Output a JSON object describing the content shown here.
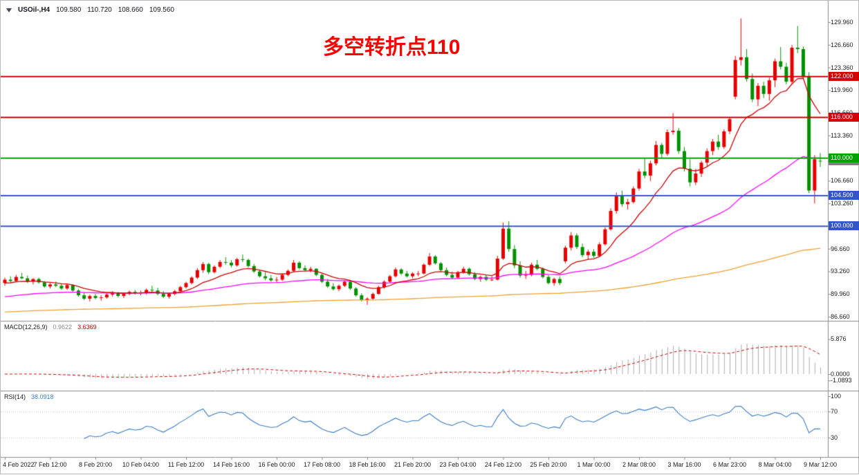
{
  "header": {
    "symbol_period": "USOil-,H4",
    "open": "109.580",
    "high": "110.720",
    "low": "108.660",
    "close": "109.560"
  },
  "annotation": {
    "text": "多空转折点110",
    "color": "#FF0000"
  },
  "chart_data": {
    "type": "candlestick",
    "symbol": "USOil-",
    "timeframe": "H4",
    "up_color": "#E60000",
    "down_color": "#009000",
    "ylim": [
      86.15,
      132.3
    ],
    "y_ticks": [
      "129.960",
      "126.660",
      "123.360",
      "119.960",
      "116.660",
      "113.360",
      "110.060",
      "106.660",
      "103.260",
      "99.960",
      "96.660",
      "93.260",
      "89.960",
      "86.660"
    ],
    "x_labels": [
      "4 Feb 2022",
      "7 Feb 12:00",
      "8 Feb 20:00",
      "10 Feb 04:00",
      "11 Feb 12:00",
      "14 Feb 16:00",
      "16 Feb 00:00",
      "17 Feb 08:00",
      "18 Feb 16:00",
      "21 Feb 20:00",
      "23 Feb 04:00",
      "24 Feb 12:00",
      "25 Feb 20:00",
      "1 Mar 00:00",
      "2 Mar 08:00",
      "3 Mar 16:00",
      "6 Mar 23:00",
      "8 Mar 04:00",
      "9 Mar 12:00"
    ],
    "horizontal_levels": [
      {
        "label": "109.560",
        "price": 109.56,
        "color": "#808080",
        "current": true
      },
      {
        "label": "122.000",
        "price": 122.0,
        "color": "#D40000"
      },
      {
        "label": "116.000",
        "price": 116.0,
        "color": "#D40000"
      },
      {
        "label": "110.000",
        "price": 110.0,
        "color": "#00A100"
      },
      {
        "label": "104.500",
        "price": 104.5,
        "color": "#3355CC"
      },
      {
        "label": "100.000",
        "price": 100.0,
        "color": "#3355CC"
      }
    ],
    "moving_averages": [
      {
        "name": "slow-ma",
        "period": 250,
        "seed": 87.3,
        "color": "#F0A030"
      },
      {
        "name": "mid-ma",
        "period": 55,
        "seed": 89.5,
        "color": "#FF00FF"
      },
      {
        "name": "fast-ma",
        "period": 12,
        "seed": 91.5,
        "color": "#CC0000"
      }
    ],
    "macd": {
      "title": "MACD(12,26,9)",
      "main_value": "0.9622",
      "signal_value": "3.6369",
      "fast": 12,
      "slow": 26,
      "signal": 9,
      "ticks": [
        "5.876",
        "0.0000",
        "-1.0893"
      ],
      "histogram_color": "#ABABAB",
      "signal_color": "#C00000"
    },
    "rsi": {
      "title": "RSI(14)",
      "value": "38.0918",
      "period": 14,
      "ticks": [
        "100",
        "70",
        "30"
      ],
      "levels": [
        70,
        30
      ],
      "color": "#3A7AC0"
    },
    "ohlc": [
      [
        91.6,
        92.4,
        91.2,
        92.1
      ],
      [
        92.1,
        92.6,
        91.7,
        91.9
      ],
      [
        91.9,
        92.8,
        91.8,
        92.5
      ],
      [
        92.5,
        93.1,
        92.2,
        92.3
      ],
      [
        92.3,
        92.7,
        91.6,
        91.8
      ],
      [
        91.8,
        92.3,
        91.4,
        92.2
      ],
      [
        92.2,
        92.4,
        91.5,
        91.7
      ],
      [
        91.7,
        91.9,
        90.9,
        91.1
      ],
      [
        91.1,
        91.6,
        90.8,
        91.4
      ],
      [
        91.4,
        91.8,
        91.0,
        91.2
      ],
      [
        91.2,
        91.5,
        90.6,
        90.8
      ],
      [
        90.8,
        91.4,
        90.6,
        91.3
      ],
      [
        91.3,
        91.4,
        90.3,
        90.5
      ],
      [
        90.5,
        90.7,
        89.6,
        89.8
      ],
      [
        89.8,
        90.2,
        89.1,
        89.3
      ],
      [
        89.3,
        89.9,
        88.9,
        89.7
      ],
      [
        89.7,
        90.0,
        89.2,
        89.4
      ],
      [
        89.4,
        89.8,
        89.0,
        89.5
      ],
      [
        89.5,
        90.1,
        89.3,
        89.9
      ],
      [
        89.9,
        90.4,
        89.6,
        90.1
      ],
      [
        90.1,
        90.3,
        89.5,
        89.7
      ],
      [
        89.7,
        90.2,
        89.4,
        90.0
      ],
      [
        90.0,
        90.5,
        89.8,
        90.3
      ],
      [
        90.3,
        90.6,
        89.9,
        90.1
      ],
      [
        90.1,
        90.5,
        89.8,
        90.2
      ],
      [
        90.2,
        90.8,
        89.9,
        90.6
      ],
      [
        90.6,
        91.2,
        90.3,
        90.5
      ],
      [
        90.5,
        90.9,
        89.8,
        90.0
      ],
      [
        90.0,
        90.4,
        89.4,
        89.6
      ],
      [
        89.6,
        90.2,
        89.3,
        90.0
      ],
      [
        90.0,
        90.6,
        89.8,
        90.4
      ],
      [
        90.4,
        91.2,
        90.2,
        91.0
      ],
      [
        91.0,
        91.8,
        90.8,
        91.6
      ],
      [
        91.6,
        92.6,
        91.4,
        92.4
      ],
      [
        92.4,
        93.8,
        92.2,
        93.5
      ],
      [
        93.5,
        94.7,
        93.1,
        94.4
      ],
      [
        94.4,
        94.6,
        92.9,
        93.2
      ],
      [
        93.2,
        94.2,
        93.0,
        94.0
      ],
      [
        94.0,
        95.0,
        93.8,
        94.7
      ],
      [
        94.7,
        95.4,
        94.3,
        94.6
      ],
      [
        94.6,
        95.0,
        93.9,
        94.2
      ],
      [
        94.2,
        95.3,
        94.0,
        95.1
      ],
      [
        95.1,
        95.8,
        94.7,
        95.0
      ],
      [
        95.0,
        95.2,
        93.9,
        94.1
      ],
      [
        94.1,
        94.4,
        93.1,
        93.3
      ],
      [
        93.3,
        93.6,
        92.4,
        92.6
      ],
      [
        92.6,
        93.2,
        92.0,
        92.3
      ],
      [
        92.3,
        92.8,
        91.8,
        92.0
      ],
      [
        92.0,
        92.5,
        91.7,
        92.1
      ],
      [
        92.1,
        93.0,
        91.9,
        92.8
      ],
      [
        92.8,
        93.6,
        92.6,
        93.4
      ],
      [
        93.4,
        95.0,
        93.2,
        94.6
      ],
      [
        94.6,
        94.8,
        93.6,
        93.8
      ],
      [
        93.8,
        94.2,
        93.3,
        93.5
      ],
      [
        93.5,
        94.0,
        93.2,
        93.7
      ],
      [
        93.7,
        93.8,
        92.6,
        92.8
      ],
      [
        92.8,
        93.0,
        91.6,
        91.8
      ],
      [
        91.8,
        92.2,
        90.9,
        91.1
      ],
      [
        91.1,
        91.6,
        90.5,
        90.7
      ],
      [
        90.7,
        91.4,
        90.4,
        91.2
      ],
      [
        91.2,
        92.0,
        91.0,
        91.8
      ],
      [
        91.8,
        91.9,
        90.6,
        90.8
      ],
      [
        90.8,
        91.0,
        89.6,
        89.8
      ],
      [
        89.8,
        90.1,
        88.9,
        89.1
      ],
      [
        89.1,
        89.5,
        88.4,
        89.3
      ],
      [
        89.3,
        90.2,
        89.1,
        90.0
      ],
      [
        90.0,
        91.2,
        89.9,
        91.0
      ],
      [
        91.0,
        92.0,
        90.8,
        91.8
      ],
      [
        91.8,
        92.8,
        91.6,
        92.6
      ],
      [
        92.6,
        93.9,
        92.4,
        93.6
      ],
      [
        93.6,
        93.8,
        92.8,
        93.0
      ],
      [
        93.0,
        93.4,
        92.4,
        92.6
      ],
      [
        92.6,
        93.2,
        92.3,
        93.0
      ],
      [
        93.0,
        93.4,
        92.6,
        93.0
      ],
      [
        93.0,
        94.5,
        92.9,
        94.3
      ],
      [
        94.3,
        96.0,
        94.1,
        95.5
      ],
      [
        95.5,
        95.7,
        94.3,
        94.5
      ],
      [
        94.5,
        94.7,
        93.3,
        93.5
      ],
      [
        93.5,
        93.9,
        92.6,
        92.8
      ],
      [
        92.8,
        93.3,
        92.2,
        92.4
      ],
      [
        92.4,
        93.4,
        92.2,
        93.2
      ],
      [
        93.2,
        94.0,
        93.0,
        93.7
      ],
      [
        93.7,
        93.9,
        92.7,
        92.9
      ],
      [
        92.9,
        93.2,
        92.0,
        92.2
      ],
      [
        92.2,
        92.7,
        91.8,
        92.5
      ],
      [
        92.5,
        92.8,
        91.9,
        92.1
      ],
      [
        92.1,
        92.6,
        91.9,
        92.1
      ],
      [
        92.1,
        95.6,
        92.0,
        95.2
      ],
      [
        95.2,
        100.5,
        95.0,
        99.6
      ],
      [
        99.6,
        100.7,
        96.2,
        96.6
      ],
      [
        96.6,
        97.2,
        93.8,
        94.2
      ],
      [
        94.2,
        94.8,
        92.4,
        92.7
      ],
      [
        92.7,
        93.4,
        92.2,
        92.8
      ],
      [
        92.8,
        94.6,
        92.6,
        94.3
      ],
      [
        94.3,
        95.0,
        93.5,
        93.7
      ],
      [
        93.7,
        93.9,
        92.3,
        92.5
      ],
      [
        92.5,
        92.8,
        91.4,
        91.6
      ],
      [
        91.6,
        92.4,
        91.2,
        92.2
      ],
      [
        92.2,
        92.6,
        91.3,
        91.6
      ],
      [
        94.8,
        97.1,
        94.5,
        96.8
      ],
      [
        96.8,
        99.1,
        96.4,
        98.6
      ],
      [
        98.6,
        98.9,
        96.6,
        96.9
      ],
      [
        96.9,
        97.4,
        95.4,
        95.7
      ],
      [
        95.7,
        96.5,
        95.0,
        96.2
      ],
      [
        96.2,
        96.6,
        95.3,
        95.6
      ],
      [
        95.6,
        97.6,
        95.4,
        97.3
      ],
      [
        97.3,
        99.8,
        97.1,
        99.5
      ],
      [
        99.5,
        102.6,
        99.3,
        102.2
      ],
      [
        102.2,
        104.9,
        101.8,
        104.5
      ],
      [
        104.5,
        105.2,
        102.8,
        103.2
      ],
      [
        103.2,
        104.0,
        102.4,
        103.5
      ],
      [
        103.5,
        105.8,
        103.3,
        105.5
      ],
      [
        105.5,
        108.4,
        105.2,
        108.0
      ],
      [
        108.0,
        110.0,
        107.0,
        107.4
      ],
      [
        107.4,
        109.6,
        106.6,
        109.2
      ],
      [
        109.2,
        112.5,
        108.9,
        111.9
      ],
      [
        111.9,
        112.2,
        110.0,
        110.6
      ],
      [
        110.6,
        114.2,
        110.3,
        113.8
      ],
      [
        113.8,
        116.6,
        113.4,
        114.0
      ],
      [
        114.0,
        114.4,
        110.6,
        111.0
      ],
      [
        111.0,
        111.6,
        108.0,
        108.4
      ],
      [
        108.4,
        109.8,
        105.8,
        106.4
      ],
      [
        106.4,
        108.4,
        106.0,
        107.7
      ],
      [
        107.7,
        109.6,
        107.2,
        109.3
      ],
      [
        109.3,
        111.4,
        108.8,
        111.0
      ],
      [
        111.0,
        112.8,
        110.4,
        112.4
      ],
      [
        112.4,
        113.4,
        111.2,
        111.6
      ],
      [
        111.6,
        114.2,
        111.3,
        113.9
      ],
      [
        113.9,
        116.0,
        113.5,
        115.7
      ],
      [
        119.0,
        125.0,
        118.6,
        124.4
      ],
      [
        124.4,
        130.5,
        123.6,
        124.8
      ],
      [
        124.8,
        126.0,
        121.2,
        121.6
      ],
      [
        121.6,
        122.4,
        118.2,
        118.6
      ],
      [
        118.6,
        121.0,
        117.6,
        120.6
      ],
      [
        120.6,
        121.2,
        118.8,
        119.4
      ],
      [
        119.4,
        121.8,
        118.4,
        121.4
      ],
      [
        121.4,
        124.6,
        120.4,
        124.2
      ],
      [
        124.2,
        126.3,
        123.0,
        123.4
      ],
      [
        123.4,
        124.0,
        120.8,
        121.2
      ],
      [
        121.2,
        126.6,
        120.9,
        126.2
      ],
      [
        126.2,
        129.4,
        125.4,
        126.0
      ],
      [
        126.0,
        126.4,
        121.6,
        122.0
      ],
      [
        122.0,
        122.6,
        104.8,
        105.2
      ],
      [
        105.2,
        110.4,
        103.3,
        109.8
      ],
      [
        109.58,
        110.72,
        108.66,
        109.56
      ]
    ]
  }
}
